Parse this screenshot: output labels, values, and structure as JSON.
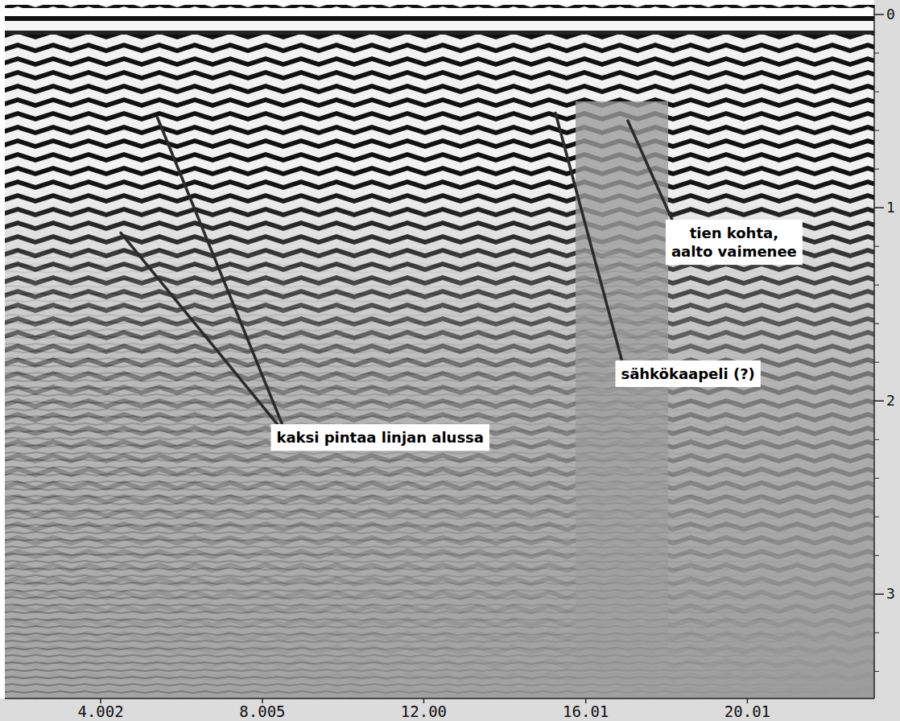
{
  "chart_data": {
    "type": "radargram",
    "xlim": [
      1.63,
      23.15
    ],
    "ylim": [
      -0.05,
      3.54
    ],
    "xticks": [
      4.002,
      8.005,
      {
        "value": 12,
        "label": "12.00"
      },
      16.01,
      20.01
    ],
    "yticks": [
      0,
      1,
      2,
      3
    ],
    "annotations": [
      {
        "text": "kaksi pintaa linjan alussa",
        "x": 10.92,
        "y": 2.19,
        "pointers": [
          {
            "x": 4.5,
            "y": 1.13
          },
          {
            "x": 5.4,
            "y": 0.53
          }
        ]
      },
      {
        "text": "sähkökaapeli (?)",
        "x": 18.54,
        "y": 1.86,
        "pointers": [
          {
            "x": 15.26,
            "y": 0.51
          }
        ]
      },
      {
        "text": "tien kohta,\naalto vaimenee",
        "x": 19.68,
        "y": 1.18,
        "pointers": [
          {
            "x": 17.05,
            "y": 0.55
          }
        ]
      }
    ]
  }
}
